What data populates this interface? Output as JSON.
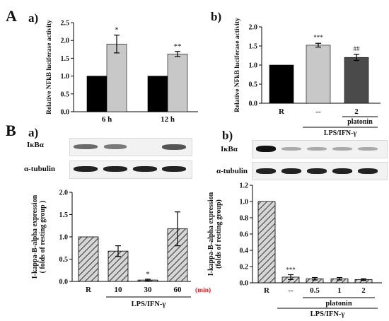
{
  "figure_labels": {
    "A": "A",
    "B": "B",
    "Aa": "a)",
    "Ab": "b)",
    "Ba": "a)",
    "Bb": "b)"
  },
  "colors": {
    "black": "#000000",
    "light_gray": "#c8c8c8",
    "dark_gray": "#4a4a4a",
    "hatch": "#9a9a9a",
    "min_label": "#e02020"
  },
  "chart_data": [
    {
      "id": "A-a",
      "type": "bar",
      "ylabel": "Relative NFkB luciferase activity",
      "ylim": [
        0,
        2.5
      ],
      "yticks": [
        "0.0",
        "0.5",
        "1.0",
        "1.5",
        "2.0",
        "2.5"
      ],
      "categories": [
        "6 h",
        "12 h"
      ],
      "series": [
        {
          "values": [
            1.0,
            1.0
          ],
          "errors": [
            0,
            0
          ],
          "color": "#000000"
        },
        {
          "values": [
            1.9,
            1.62
          ],
          "errors": [
            0.25,
            0.07
          ],
          "color": "#c8c8c8"
        }
      ],
      "annotations": [
        "*",
        "**"
      ]
    },
    {
      "id": "A-b",
      "type": "bar",
      "ylabel": "Relative NFkB luciferase activity",
      "ylim": [
        0,
        2.0
      ],
      "yticks": [
        "0.0",
        "0.5",
        "1.0",
        "1.5",
        "2.0"
      ],
      "categories": [
        "R",
        "--",
        "2"
      ],
      "values": [
        1.0,
        1.52,
        1.2
      ],
      "errors": [
        0,
        0.05,
        0.08
      ],
      "colors": [
        "#000000",
        "#c8c8c8",
        "#4a4a4a"
      ],
      "annotations": [
        "",
        "***",
        "##"
      ],
      "group_labels": {
        "platonin": "platonin",
        "treatment": "LPS/IFN-γ"
      }
    },
    {
      "id": "B-a",
      "type": "bar",
      "ylabel": "I-kappa-B-alpha expression",
      "ylabel2": "( folds of resting group )",
      "ylim": [
        0,
        2.0
      ],
      "yticks": [
        "0.0",
        "0.5",
        "1.0",
        "1.5",
        "2.0"
      ],
      "categories": [
        "R",
        "10",
        "30",
        "60"
      ],
      "values": [
        1.0,
        0.68,
        0.03,
        1.18
      ],
      "errors": [
        0,
        0.12,
        0.02,
        0.38
      ],
      "annotations": [
        "",
        "",
        "*",
        ""
      ],
      "unit_label": "(min)",
      "group_labels": {
        "treatment": "LPS/IFN-γ"
      },
      "blot_labels": [
        "IκBα",
        "α-tubulin"
      ]
    },
    {
      "id": "B-b",
      "type": "bar",
      "ylabel": "I-kappa-B-alpha expression",
      "ylabel2": "(folds of resting group)",
      "ylim": [
        0,
        1.2
      ],
      "yticks": [
        "0.0",
        "0.2",
        "0.4",
        "0.6",
        "0.8",
        "1.0",
        "1.2"
      ],
      "categories": [
        "R",
        "--",
        "0.5",
        "1",
        "2"
      ],
      "values": [
        1.0,
        0.07,
        0.05,
        0.05,
        0.04
      ],
      "errors": [
        0,
        0.03,
        0.015,
        0.015,
        0.01
      ],
      "annotations": [
        "",
        "***",
        "",
        "",
        ""
      ],
      "group_labels": {
        "platonin": "platonin",
        "treatment": "LPS/IFN-γ"
      },
      "blot_labels": [
        "IκBα",
        "α-tubulin"
      ]
    }
  ]
}
